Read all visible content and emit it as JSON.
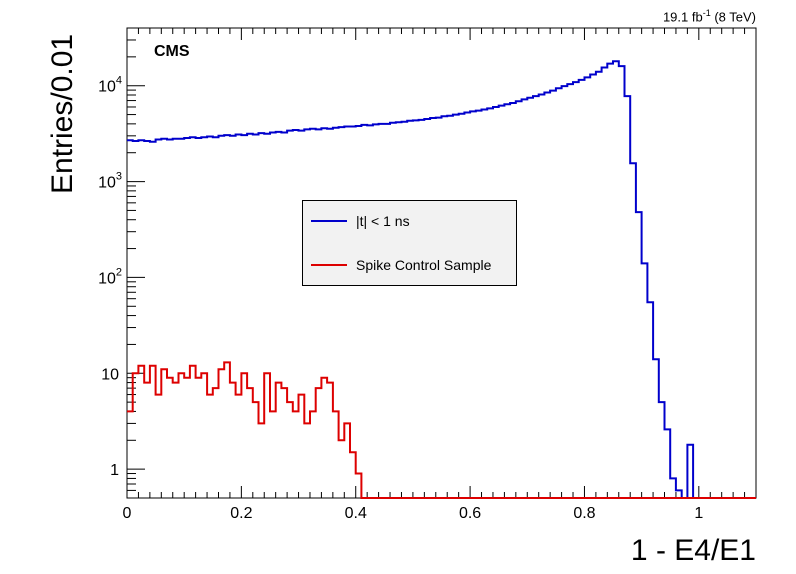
{
  "header": {
    "lumi_main": "19.1 fb",
    "lumi_sup": "-1",
    "lumi_tail": " (8 TeV)"
  },
  "annotation": {
    "experiment": "CMS"
  },
  "chart_data": {
    "type": "line",
    "xlabel": "1 - E4/E1",
    "ylabel": "Entries/0.01",
    "xlim": [
      0,
      1.1
    ],
    "ylim": [
      0.5,
      40000
    ],
    "yscale": "log",
    "bin_width": 0.01,
    "x_ticks": [
      "0",
      "0.2",
      "0.4",
      "0.6",
      "0.8",
      "1"
    ],
    "y_ticks": [
      {
        "value": 1,
        "label": "1"
      },
      {
        "value": 10,
        "label": "10"
      },
      {
        "value": 100,
        "label": "10",
        "exp": "2"
      },
      {
        "value": 1000,
        "label": "10",
        "exp": "3"
      },
      {
        "value": 10000,
        "label": "10",
        "exp": "4"
      }
    ],
    "legend": {
      "position": "center",
      "entries": [
        "|t| < 1 ns",
        "Spike Control Sample"
      ]
    },
    "series": [
      {
        "name": "|t| < 1 ns",
        "color": "#0000cc",
        "values": [
          2700,
          2650,
          2700,
          2650,
          2600,
          2750,
          2800,
          2750,
          2800,
          2800,
          2850,
          2900,
          2850,
          2900,
          2950,
          2900,
          3000,
          3050,
          3000,
          3100,
          3050,
          3150,
          3100,
          3200,
          3150,
          3250,
          3300,
          3250,
          3400,
          3450,
          3400,
          3500,
          3550,
          3500,
          3600,
          3550,
          3650,
          3700,
          3750,
          3750,
          3800,
          3900,
          3850,
          3950,
          4000,
          4000,
          4100,
          4150,
          4200,
          4300,
          4350,
          4400,
          4500,
          4600,
          4650,
          4800,
          4850,
          5000,
          5100,
          5250,
          5400,
          5500,
          5650,
          5800,
          6000,
          6200,
          6400,
          6600,
          6900,
          7200,
          7500,
          7800,
          8100,
          8500,
          8900,
          9400,
          9900,
          10400,
          10900,
          11500,
          12200,
          13100,
          14000,
          15500,
          17000,
          18000,
          16000,
          7800,
          1550,
          480,
          140,
          55,
          14,
          5,
          2.6,
          0.8,
          0.6,
          0.4,
          1.8,
          0.4,
          0.4,
          0.4,
          0.4,
          0.4,
          0.4,
          0.4,
          0.4,
          0.4,
          0.4,
          0.4
        ]
      },
      {
        "name": "Spike Control Sample",
        "color": "#dd0000",
        "values": [
          4,
          10,
          12,
          8,
          12,
          6,
          11,
          9,
          8,
          10,
          9,
          12,
          9,
          10,
          6,
          7,
          11,
          13,
          8,
          6,
          10,
          7,
          5,
          3,
          10,
          4,
          8,
          7,
          5,
          4,
          6,
          3,
          4,
          7,
          9,
          8,
          4,
          2,
          3,
          1.5,
          0.9,
          0.4,
          0.4,
          0.4,
          0.4,
          0.4,
          0.4,
          0.4,
          0.4,
          0.4,
          0.4,
          0.4,
          0.4,
          0.4,
          0.4,
          0.4,
          0.4,
          0.4,
          0.4,
          0.4,
          0.4,
          0.4,
          0.4,
          0.4,
          0.4,
          0.4,
          0.4,
          0.4,
          0.4,
          0.4,
          0.4,
          0.4,
          0.4,
          0.4,
          0.4,
          0.4,
          0.4,
          0.4,
          0.4,
          0.4,
          0.4,
          0.4,
          0.4,
          0.4,
          0.4,
          0.4,
          0.4,
          0.4,
          0.4,
          0.4,
          0.4,
          0.4,
          0.4,
          0.4,
          0.4,
          0.4,
          0.4,
          0.4,
          0.4,
          0.4,
          0.4,
          0.4,
          0.4,
          0.4,
          0.4,
          0.4,
          0.4,
          0.4,
          0.4,
          0.4
        ]
      }
    ]
  }
}
